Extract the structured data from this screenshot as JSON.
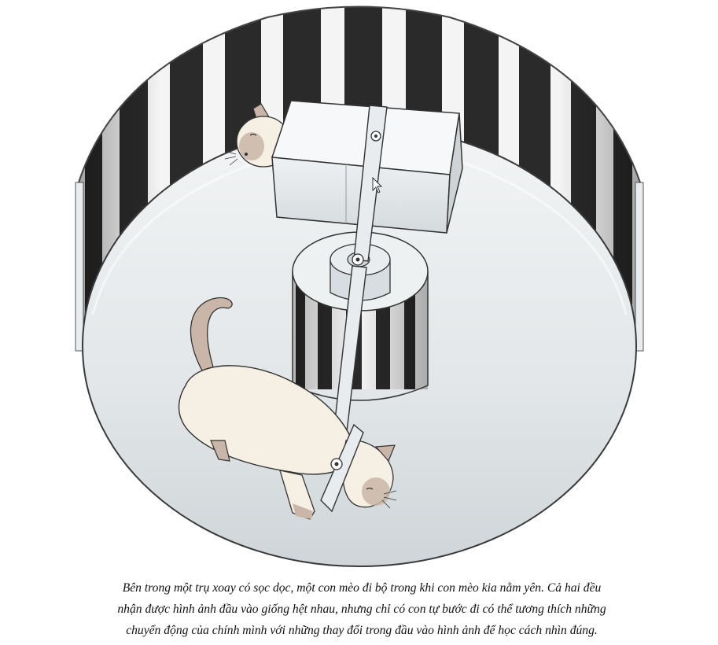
{
  "caption": {
    "lines": [
      "Bên trong một trụ xoay có sọc dọc, một con mèo đi bộ trong khi con mèo kia nằm yên. Cả hai đều",
      "nhận được hình ảnh đầu vào giống hệt nhau, nhưng chỉ có con tự bước đi có thể tương thích những",
      "chuyển động của chính mình với những thay đổi trong đầu vào hình ảnh để học cách nhìn đúng."
    ]
  },
  "colors": {
    "stripe_dark": "#2a2a2a",
    "stripe_light": "#f4f4f4",
    "floor": "#e4e8ea",
    "cat_body": "#f6efe4",
    "cat_points": "#c9b6a8"
  }
}
